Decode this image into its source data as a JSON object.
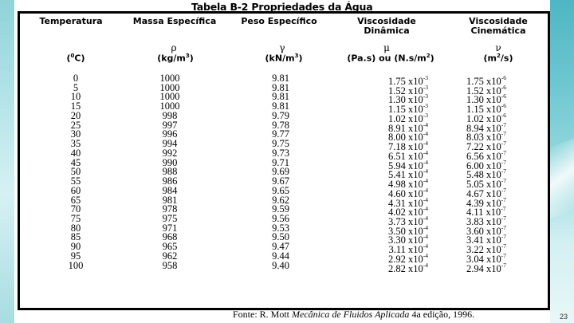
{
  "title": "Tabela B-2 Propriedades da Água",
  "headers": {
    "temp": {
      "line1": "Temperatura",
      "symbol": "",
      "unit_pre": "(",
      "unit_sup": "0",
      "unit_post": "C)"
    },
    "mass": {
      "line1": "Massa Específica",
      "symbol": "ρ",
      "unit_pre": "(kg/m",
      "unit_sup": "3",
      "unit_post": ")"
    },
    "peso": {
      "line1": "Peso Específico",
      "symbol": "γ",
      "unit_pre": "(kN/m",
      "unit_sup": "3",
      "unit_post": ")"
    },
    "din": {
      "line1": "Viscosidade",
      "line2": "Dinâmica",
      "symbol": "μ",
      "unit_pre": "(Pa.s)  ou (N.s/m",
      "unit_sup": "2",
      "unit_post": ")"
    },
    "cin": {
      "line1": "Viscosidade",
      "line2": "Cinemática",
      "symbol": "ν",
      "unit_pre": "(m",
      "unit_sup": "2",
      "unit_post": "/s)"
    }
  },
  "rows": [
    {
      "t": "0",
      "rho": "1000",
      "gamma": "9.81",
      "mu_m": "1.75 x10",
      "mu_e": "-3",
      "nu_m": "1.75 x10",
      "nu_e": "-6"
    },
    {
      "t": "5",
      "rho": "1000",
      "gamma": "9.81",
      "mu_m": "1.52 x10",
      "mu_e": "-3",
      "nu_m": "1.52 x10",
      "nu_e": "-6"
    },
    {
      "t": "10",
      "rho": "1000",
      "gamma": "9.81",
      "mu_m": "1.30 x10",
      "mu_e": "-3",
      "nu_m": "1.30 x10",
      "nu_e": "-6"
    },
    {
      "t": "15",
      "rho": "1000",
      "gamma": "9.81",
      "mu_m": "1.15 x10",
      "mu_e": "-3",
      "nu_m": "1.15 x10",
      "nu_e": "-6"
    },
    {
      "t": "20",
      "rho": "998",
      "gamma": "9.79",
      "mu_m": "1.02 x10",
      "mu_e": "-3",
      "nu_m": "1.02 x10",
      "nu_e": "-6"
    },
    {
      "t": "25",
      "rho": "997",
      "gamma": "9.78",
      "mu_m": "8.91 x10",
      "mu_e": "-4",
      "nu_m": "8.94 x10",
      "nu_e": "-7"
    },
    {
      "t": "30",
      "rho": "996",
      "gamma": "9.77",
      "mu_m": "8.00 x10",
      "mu_e": "-4",
      "nu_m": "8.03 x10",
      "nu_e": "-7"
    },
    {
      "t": "35",
      "rho": "994",
      "gamma": "9.75",
      "mu_m": "7.18 x10",
      "mu_e": "-4",
      "nu_m": "7.22 x10",
      "nu_e": "-7"
    },
    {
      "t": "40",
      "rho": "992",
      "gamma": "9.73",
      "mu_m": "6.51 x10",
      "mu_e": "-4",
      "nu_m": "6.56 x10",
      "nu_e": "-7"
    },
    {
      "t": "45",
      "rho": "990",
      "gamma": "9.71",
      "mu_m": "5.94 x10",
      "mu_e": "-4",
      "nu_m": "6.00 x10",
      "nu_e": "-7"
    },
    {
      "t": "50",
      "rho": "988",
      "gamma": "9.69",
      "mu_m": "5.41 x10",
      "mu_e": "-4",
      "nu_m": "5.48 x10",
      "nu_e": "-7"
    },
    {
      "t": "55",
      "rho": "986",
      "gamma": "9.67",
      "mu_m": "4.98 x10",
      "mu_e": "-4",
      "nu_m": "5.05 x10",
      "nu_e": "-7"
    },
    {
      "t": "60",
      "rho": "984",
      "gamma": "9.65",
      "mu_m": "4.60 x10",
      "mu_e": "-4",
      "nu_m": "4.67 x10",
      "nu_e": "-7"
    },
    {
      "t": "65",
      "rho": "981",
      "gamma": "9.62",
      "mu_m": "4.31 x10",
      "mu_e": "-4",
      "nu_m": "4.39 x10",
      "nu_e": "-7"
    },
    {
      "t": "70",
      "rho": "978",
      "gamma": "9.59",
      "mu_m": "4.02 x10",
      "mu_e": "-4",
      "nu_m": "4.11 x10",
      "nu_e": "-7"
    },
    {
      "t": "75",
      "rho": "975",
      "gamma": "9.56",
      "mu_m": "3.73 x10",
      "mu_e": "-4",
      "nu_m": "3.83 x10",
      "nu_e": "-7"
    },
    {
      "t": "80",
      "rho": "971",
      "gamma": "9.53",
      "mu_m": "3.50 x10",
      "mu_e": "-4",
      "nu_m": "3.60 x10",
      "nu_e": "-7"
    },
    {
      "t": "85",
      "rho": "968",
      "gamma": "9.50",
      "mu_m": "3.30 x10",
      "mu_e": "-4",
      "nu_m": "3.41 x10",
      "nu_e": "-7"
    },
    {
      "t": "90",
      "rho": "965",
      "gamma": "9.47",
      "mu_m": "3.11 x10",
      "mu_e": "-4",
      "nu_m": "3.22 x10",
      "nu_e": "-7"
    },
    {
      "t": "95",
      "rho": "962",
      "gamma": "9.44",
      "mu_m": "2.92 x10",
      "mu_e": "-4",
      "nu_m": "3.04 x10",
      "nu_e": "-7"
    },
    {
      "t": "100",
      "rho": "958",
      "gamma": "9.40",
      "mu_m": "2.82 x10",
      "mu_e": "-4",
      "nu_m": "2.94 x10",
      "nu_e": "-7"
    }
  ],
  "source": {
    "prefix": "Fonte: R. Mott ",
    "book": "Mecânica de Fluidos Aplicada",
    "suffix": " 4a edição, 1996."
  },
  "page_number": "23"
}
